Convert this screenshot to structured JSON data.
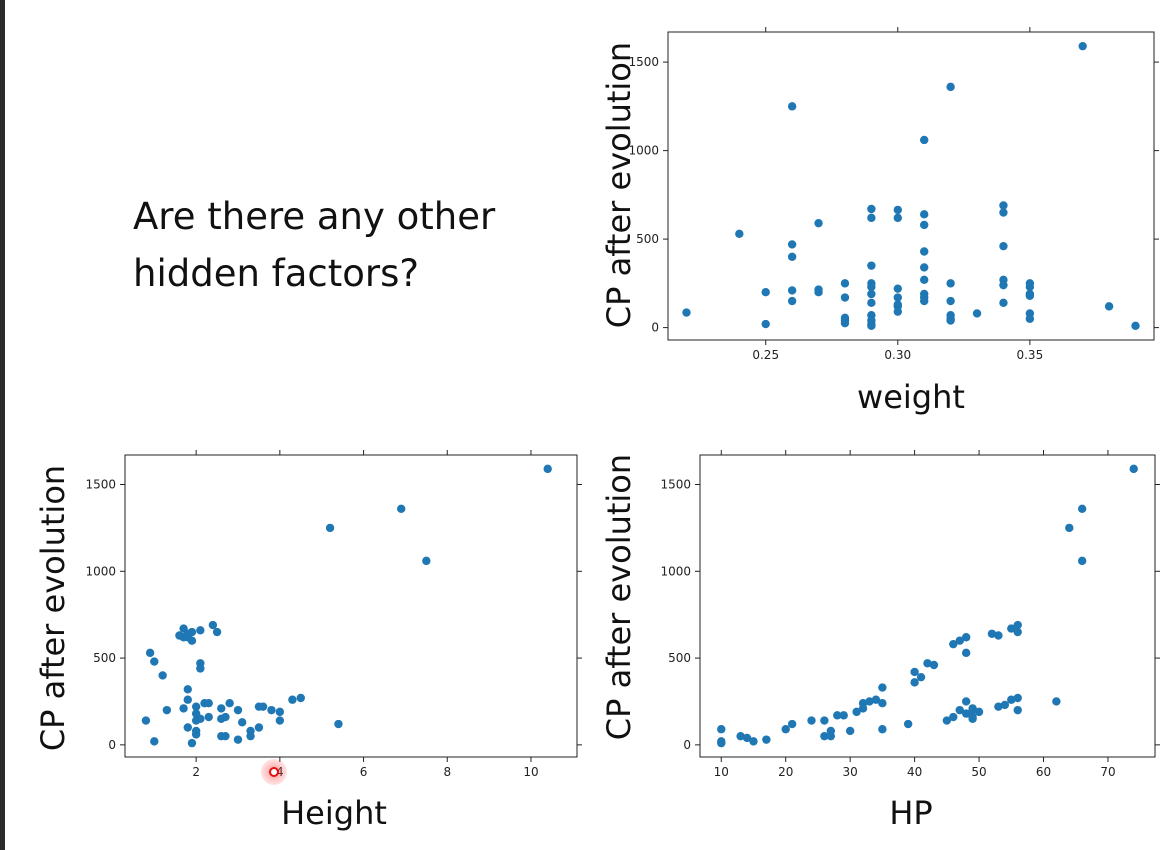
{
  "question": {
    "line1": "Are there any other",
    "line2": "hidden factors?"
  },
  "style": {
    "point_color": "#1f77b4",
    "cursor_color": "#e01010"
  },
  "chart_data": [
    {
      "type": "scatter",
      "xlabel": "weight",
      "ylabel": "CP after evolution",
      "xlim": [
        0.213,
        0.397
      ],
      "ylim": [
        -70,
        1670
      ],
      "xticks": [
        {
          "v": 0.25,
          "label": "0.25"
        },
        {
          "v": 0.3,
          "label": "0.30"
        },
        {
          "v": 0.35,
          "label": "0.35"
        }
      ],
      "yticks": [
        {
          "v": 0,
          "label": "0"
        },
        {
          "v": 500,
          "label": "500"
        },
        {
          "v": 1000,
          "label": "1000"
        },
        {
          "v": 1500,
          "label": "1500"
        }
      ],
      "x": [
        0.22,
        0.24,
        0.25,
        0.25,
        0.26,
        0.26,
        0.26,
        0.26,
        0.26,
        0.27,
        0.27,
        0.27,
        0.28,
        0.28,
        0.28,
        0.28,
        0.28,
        0.29,
        0.29,
        0.29,
        0.29,
        0.29,
        0.29,
        0.29,
        0.29,
        0.29,
        0.29,
        0.29,
        0.3,
        0.3,
        0.3,
        0.3,
        0.3,
        0.3,
        0.3,
        0.31,
        0.31,
        0.31,
        0.31,
        0.31,
        0.31,
        0.31,
        0.31,
        0.31,
        0.32,
        0.32,
        0.32,
        0.32,
        0.32,
        0.32,
        0.33,
        0.34,
        0.34,
        0.34,
        0.34,
        0.34,
        0.34,
        0.35,
        0.35,
        0.35,
        0.35,
        0.35,
        0.35,
        0.37,
        0.38,
        0.39
      ],
      "y": [
        85,
        530,
        200,
        20,
        1250,
        470,
        400,
        210,
        150,
        590,
        215,
        200,
        250,
        170,
        55,
        25,
        40,
        670,
        620,
        350,
        250,
        230,
        190,
        140,
        70,
        40,
        20,
        10,
        665,
        620,
        220,
        170,
        120,
        90,
        130,
        1060,
        640,
        580,
        430,
        340,
        270,
        190,
        170,
        150,
        1360,
        250,
        150,
        70,
        50,
        40,
        80,
        690,
        460,
        270,
        240,
        140,
        650,
        250,
        230,
        190,
        180,
        80,
        50,
        1590,
        120,
        10
      ],
      "points": []
    },
    {
      "type": "scatter",
      "xlabel": "Height",
      "ylabel": "CP after evolution",
      "xlim": [
        0.3,
        11.1
      ],
      "ylim": [
        -70,
        1670
      ],
      "xticks": [
        {
          "v": 2,
          "label": "2"
        },
        {
          "v": 4,
          "label": "4"
        },
        {
          "v": 6,
          "label": "6"
        },
        {
          "v": 8,
          "label": "8"
        },
        {
          "v": 10,
          "label": "10"
        }
      ],
      "yticks": [
        {
          "v": 0,
          "label": "0"
        },
        {
          "v": 500,
          "label": "500"
        },
        {
          "v": 1000,
          "label": "1000"
        },
        {
          "v": 1500,
          "label": "1500"
        }
      ],
      "x": [
        0.8,
        0.9,
        1.0,
        1.0,
        1.2,
        1.3,
        1.6,
        1.7,
        1.7,
        1.7,
        1.8,
        1.8,
        1.8,
        1.8,
        1.8,
        1.9,
        1.9,
        1.9,
        2.0,
        2.0,
        2.0,
        2.0,
        2.0,
        2.1,
        2.1,
        2.1,
        2.1,
        2.2,
        2.3,
        2.3,
        2.4,
        2.5,
        2.6,
        2.6,
        2.6,
        2.7,
        2.7,
        2.8,
        3.0,
        3.0,
        3.1,
        3.3,
        3.3,
        3.5,
        3.5,
        3.6,
        3.8,
        4.0,
        4.0,
        4.3,
        4.5,
        5.2,
        5.4,
        6.9,
        7.5,
        10.4
      ],
      "y": [
        140,
        530,
        20,
        480,
        400,
        200,
        630,
        670,
        620,
        210,
        640,
        620,
        320,
        260,
        100,
        600,
        650,
        10,
        220,
        180,
        140,
        80,
        60,
        660,
        470,
        440,
        150,
        240,
        240,
        160,
        690,
        650,
        210,
        150,
        50,
        160,
        50,
        240,
        200,
        30,
        130,
        80,
        50,
        220,
        100,
        220,
        200,
        190,
        140,
        260,
        270,
        1250,
        120,
        1360,
        1060,
        1590
      ],
      "points": []
    },
    {
      "type": "scatter",
      "xlabel": "HP",
      "ylabel": "CP after evolution",
      "xlim": [
        6.7,
        77.3
      ],
      "ylim": [
        -70,
        1670
      ],
      "xticks": [
        {
          "v": 10,
          "label": "10"
        },
        {
          "v": 20,
          "label": "20"
        },
        {
          "v": 30,
          "label": "30"
        },
        {
          "v": 40,
          "label": "40"
        },
        {
          "v": 50,
          "label": "50"
        },
        {
          "v": 60,
          "label": "60"
        },
        {
          "v": 70,
          "label": "70"
        }
      ],
      "yticks": [
        {
          "v": 0,
          "label": "0"
        },
        {
          "v": 500,
          "label": "500"
        },
        {
          "v": 1000,
          "label": "1000"
        },
        {
          "v": 1500,
          "label": "1500"
        }
      ],
      "x": [
        10,
        10,
        10,
        13,
        14,
        15,
        17,
        20,
        21,
        24,
        26,
        26,
        27,
        27,
        28,
        29,
        30,
        31,
        32,
        32,
        33,
        34,
        35,
        35,
        35,
        39,
        40,
        40,
        41,
        42,
        43,
        45,
        46,
        46,
        47,
        47,
        48,
        48,
        48,
        48,
        49,
        49,
        49,
        49,
        50,
        52,
        53,
        53,
        54,
        55,
        55,
        56,
        56,
        56,
        56,
        62,
        64,
        66,
        66,
        74
      ],
      "y": [
        90,
        20,
        10,
        50,
        40,
        20,
        30,
        90,
        120,
        140,
        140,
        50,
        80,
        50,
        170,
        170,
        80,
        190,
        210,
        240,
        250,
        260,
        330,
        240,
        90,
        120,
        420,
        360,
        390,
        470,
        460,
        140,
        580,
        160,
        600,
        200,
        620,
        530,
        250,
        180,
        210,
        160,
        150,
        200,
        190,
        640,
        630,
        220,
        230,
        670,
        260,
        690,
        650,
        270,
        200,
        250,
        1250,
        1360,
        1060,
        1590
      ],
      "points": []
    }
  ]
}
